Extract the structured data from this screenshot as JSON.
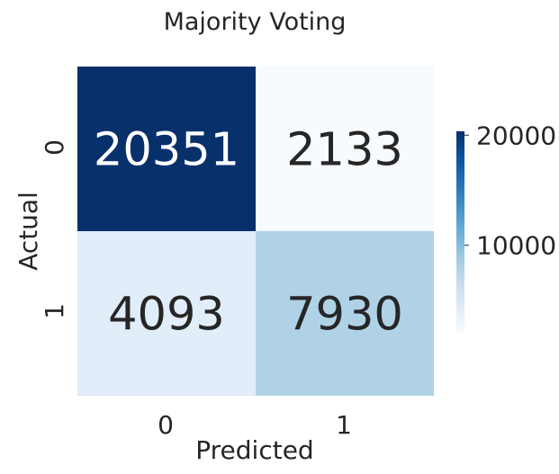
{
  "chart_data": {
    "type": "heatmap",
    "title": "Majority Voting",
    "xlabel": "Predicted",
    "ylabel": "Actual",
    "x_categories": [
      "0",
      "1"
    ],
    "y_categories": [
      "0",
      "1"
    ],
    "matrix": [
      [
        20351,
        2133
      ],
      [
        4093,
        7930
      ]
    ],
    "colorbar": {
      "colormap": "Blues",
      "range": [
        2133,
        20351
      ],
      "ticks": [
        "10000",
        "20000"
      ]
    },
    "grid": false
  },
  "colors": {
    "text_dark": "#262626",
    "text_light": "#ffffff",
    "blues_start": "#f7fbff",
    "blues_end": "#08306b"
  }
}
